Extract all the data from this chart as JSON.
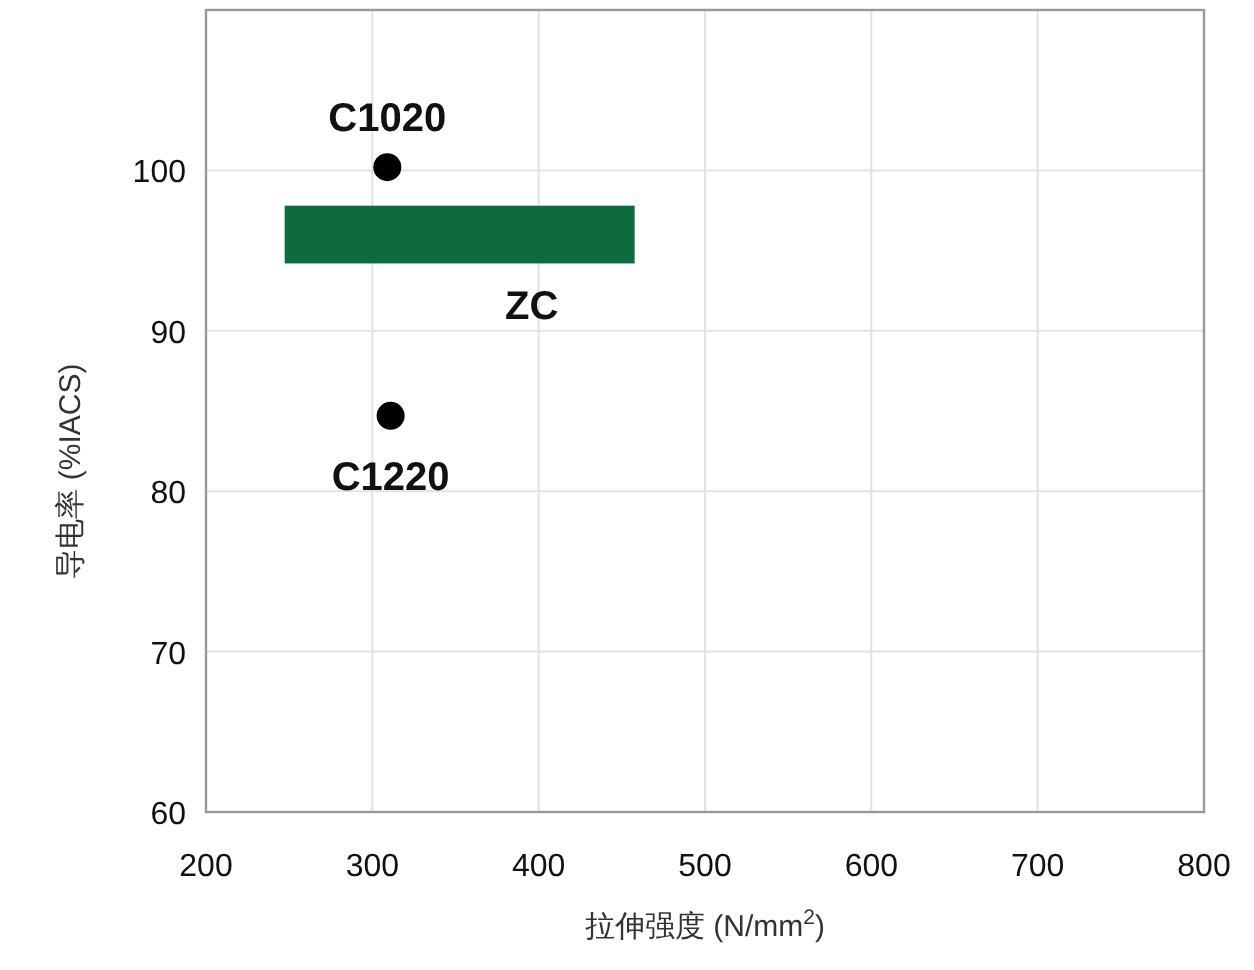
{
  "chart_data": {
    "type": "scatter",
    "xlabel": "拉伸强度 (N/mm$^{2}$)",
    "ylabel": "导电率 (%IACS)",
    "xlim": [
      200,
      800
    ],
    "ylim": [
      60,
      110
    ],
    "xticks": [
      200,
      300,
      400,
      500,
      600,
      700,
      800
    ],
    "yticks": [
      60,
      70,
      80,
      90,
      100
    ],
    "grid": true,
    "marker": "circle",
    "series": [
      {
        "name": "C1020",
        "color": "#000000",
        "x": [
          309
        ],
        "values": [
          100.2
        ]
      },
      {
        "name": "ZC",
        "type": "bar",
        "color": "#0e6b3e",
        "x": [
          352.5
        ],
        "base": [
          94.2
        ],
        "values": [
          3.6
        ]
      },
      {
        "name": "C1220",
        "color": "#000000",
        "x": [
          311
        ],
        "values": [
          84.7
        ]
      }
    ]
  }
}
